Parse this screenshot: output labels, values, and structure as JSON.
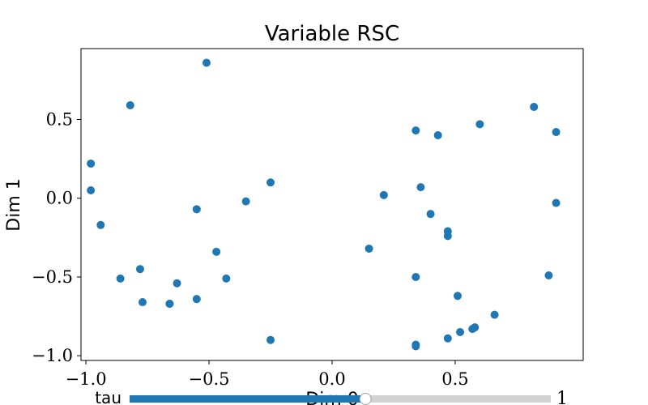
{
  "chart_data": {
    "type": "scatter",
    "title": "Variable RSC",
    "xlabel": "Dim 0",
    "ylabel": "Dim 1",
    "xlim": [
      -1.02,
      1.02
    ],
    "ylim": [
      -1.03,
      0.95
    ],
    "xticks": [
      -1.0,
      -0.5,
      0.0,
      0.5
    ],
    "xtick_labels": [
      "−1.0",
      "−0.5",
      "0.0",
      "0.5"
    ],
    "yticks": [
      -1.0,
      -0.5,
      0.0,
      0.5
    ],
    "ytick_labels": [
      "−1.0",
      "−0.5",
      "0.0",
      "0.5"
    ],
    "grid": false,
    "marker_color": "#1f77b4",
    "points": [
      {
        "x": -0.51,
        "y": 0.86
      },
      {
        "x": -0.82,
        "y": 0.59
      },
      {
        "x": -0.25,
        "y": 0.1
      },
      {
        "x": -0.35,
        "y": -0.02
      },
      {
        "x": -0.98,
        "y": 0.22
      },
      {
        "x": -0.98,
        "y": 0.05
      },
      {
        "x": -0.94,
        "y": -0.17
      },
      {
        "x": -0.55,
        "y": -0.07
      },
      {
        "x": -0.47,
        "y": -0.34
      },
      {
        "x": -0.43,
        "y": -0.51
      },
      {
        "x": -0.78,
        "y": -0.45
      },
      {
        "x": -0.86,
        "y": -0.51
      },
      {
        "x": -0.63,
        "y": -0.54
      },
      {
        "x": -0.77,
        "y": -0.66
      },
      {
        "x": -0.66,
        "y": -0.67
      },
      {
        "x": -0.66,
        "y": -0.67
      },
      {
        "x": -0.55,
        "y": -0.64
      },
      {
        "x": -0.25,
        "y": -0.9
      },
      {
        "x": 0.15,
        "y": -0.32
      },
      {
        "x": 0.21,
        "y": 0.02
      },
      {
        "x": 0.34,
        "y": 0.43
      },
      {
        "x": 0.36,
        "y": 0.07
      },
      {
        "x": 0.4,
        "y": -0.1
      },
      {
        "x": 0.43,
        "y": 0.4
      },
      {
        "x": 0.47,
        "y": -0.21
      },
      {
        "x": 0.47,
        "y": -0.24
      },
      {
        "x": 0.34,
        "y": -0.5
      },
      {
        "x": 0.51,
        "y": -0.62
      },
      {
        "x": 0.6,
        "y": 0.47
      },
      {
        "x": 0.82,
        "y": 0.58
      },
      {
        "x": 0.91,
        "y": 0.42
      },
      {
        "x": 0.91,
        "y": -0.03
      },
      {
        "x": 0.88,
        "y": -0.49
      },
      {
        "x": 0.66,
        "y": -0.74
      },
      {
        "x": 0.58,
        "y": -0.82
      },
      {
        "x": 0.57,
        "y": -0.83
      },
      {
        "x": 0.52,
        "y": -0.85
      },
      {
        "x": 0.47,
        "y": -0.89
      },
      {
        "x": 0.34,
        "y": -0.93
      },
      {
        "x": 0.34,
        "y": -0.94
      }
    ]
  },
  "slider": {
    "label": "tau",
    "value_label": "1",
    "fraction": 0.56,
    "active_color": "#1f77b4",
    "track_color": "#d3d3d3"
  }
}
